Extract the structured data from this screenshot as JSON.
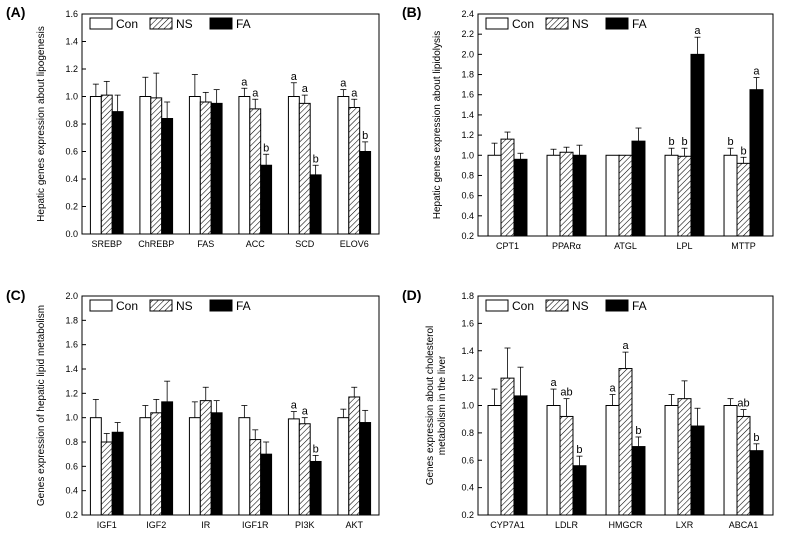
{
  "chart_data": [
    {
      "type": "bar",
      "panel_label": "(A)",
      "ylabel": "Hepatic genes expression about lipogenesis",
      "ylim": [
        0,
        1.6
      ],
      "yticks": [
        "0.0",
        "0.2",
        "0.4",
        "0.6",
        "0.8",
        "1.0",
        "1.2",
        "1.4",
        "1.6"
      ],
      "categories": [
        "SREBP",
        "ChREBP",
        "FAS",
        "ACC",
        "SCD",
        "ELOV6"
      ],
      "legend": [
        "Con",
        "NS",
        "FA"
      ],
      "series": [
        {
          "name": "Con",
          "values": [
            1.0,
            1.0,
            1.0,
            1.0,
            1.0,
            1.0
          ],
          "errors": [
            0.09,
            0.14,
            0.16,
            0.06,
            0.1,
            0.05
          ],
          "labels": [
            "",
            "",
            "",
            "a",
            "a",
            "a"
          ]
        },
        {
          "name": "NS",
          "values": [
            1.01,
            0.99,
            0.96,
            0.91,
            0.95,
            0.92
          ],
          "errors": [
            0.1,
            0.18,
            0.07,
            0.07,
            0.06,
            0.06
          ],
          "labels": [
            "",
            "",
            "",
            "a",
            "a",
            "a"
          ]
        },
        {
          "name": "FA",
          "values": [
            0.89,
            0.84,
            0.95,
            0.5,
            0.43,
            0.6
          ],
          "errors": [
            0.12,
            0.12,
            0.1,
            0.08,
            0.07,
            0.07
          ],
          "labels": [
            "",
            "",
            "",
            "b",
            "b",
            "b"
          ]
        }
      ]
    },
    {
      "type": "bar",
      "panel_label": "(B)",
      "ylabel": "Hepatic genes expression about lipidolysis",
      "ylim": [
        0.2,
        2.4
      ],
      "yticks": [
        "0.2",
        "0.4",
        "0.6",
        "0.8",
        "1.0",
        "1.2",
        "1.4",
        "1.6",
        "1.8",
        "2.0",
        "2.2",
        "2.4"
      ],
      "categories": [
        "CPT1",
        "PPARα",
        "ATGL",
        "LPL",
        "MTTP"
      ],
      "legend": [
        "Con",
        "NS",
        "FA"
      ],
      "series": [
        {
          "name": "Con",
          "values": [
            1.0,
            1.0,
            1.0,
            1.0,
            1.0
          ],
          "errors": [
            0.12,
            0.06,
            0.0,
            0.07,
            0.07
          ],
          "labels": [
            "",
            "",
            "",
            "b",
            "b"
          ]
        },
        {
          "name": "NS",
          "values": [
            1.16,
            1.03,
            1.0,
            0.99,
            0.92
          ],
          "errors": [
            0.07,
            0.05,
            0.0,
            0.08,
            0.06
          ],
          "labels": [
            "",
            "",
            "",
            "b",
            "b"
          ]
        },
        {
          "name": "FA",
          "values": [
            0.96,
            1.0,
            1.14,
            2.0,
            1.65
          ],
          "errors": [
            0.06,
            0.1,
            0.13,
            0.17,
            0.12
          ],
          "labels": [
            "",
            "",
            "",
            "a",
            "a"
          ]
        }
      ]
    },
    {
      "type": "bar",
      "panel_label": "(C)",
      "ylabel": "Genes expression of hepatic lipid metabolism",
      "ylim": [
        0.2,
        2.0
      ],
      "yticks": [
        "0.2",
        "0.4",
        "0.6",
        "0.8",
        "1.0",
        "1.2",
        "1.4",
        "1.6",
        "1.8",
        "2.0"
      ],
      "categories": [
        "IGF1",
        "IGF2",
        "IR",
        "IGF1R",
        "PI3K",
        "AKT"
      ],
      "legend": [
        "Con",
        "NS",
        "FA"
      ],
      "series": [
        {
          "name": "Con",
          "values": [
            1.0,
            1.0,
            1.0,
            1.0,
            0.99,
            1.0
          ],
          "errors": [
            0.15,
            0.1,
            0.13,
            0.1,
            0.06,
            0.07
          ],
          "labels": [
            "",
            "",
            "",
            "",
            "a",
            ""
          ]
        },
        {
          "name": "NS",
          "values": [
            0.8,
            1.04,
            1.14,
            0.82,
            0.95,
            1.17
          ],
          "errors": [
            0.07,
            0.11,
            0.11,
            0.08,
            0.05,
            0.08
          ],
          "labels": [
            "",
            "",
            "",
            "",
            "a",
            ""
          ]
        },
        {
          "name": "FA",
          "values": [
            0.88,
            1.13,
            1.04,
            0.7,
            0.64,
            0.96
          ],
          "errors": [
            0.08,
            0.17,
            0.1,
            0.1,
            0.05,
            0.1
          ],
          "labels": [
            "",
            "",
            "",
            "",
            "b",
            ""
          ]
        }
      ]
    },
    {
      "type": "bar",
      "panel_label": "(D)",
      "ylabel": "Genes expression about cholesterol metabolism in the liver",
      "ylabel_lines": [
        "Genes expression about cholesterol",
        "metabolism in the liver"
      ],
      "ylim": [
        0.2,
        1.8
      ],
      "yticks": [
        "0.2",
        "0.4",
        "0.6",
        "0.8",
        "1.0",
        "1.2",
        "1.4",
        "1.6",
        "1.8"
      ],
      "categories": [
        "CYP7A1",
        "LDLR",
        "HMGCR",
        "LXR",
        "ABCA1"
      ],
      "legend": [
        "Con",
        "NS",
        "FA"
      ],
      "series": [
        {
          "name": "Con",
          "values": [
            1.0,
            1.0,
            1.0,
            1.0,
            1.0
          ],
          "errors": [
            0.12,
            0.12,
            0.08,
            0.08,
            0.05
          ],
          "labels": [
            "",
            "a",
            "a",
            "",
            ""
          ]
        },
        {
          "name": "NS",
          "values": [
            1.2,
            0.92,
            1.27,
            1.05,
            0.92
          ],
          "errors": [
            0.22,
            0.13,
            0.12,
            0.13,
            0.05
          ],
          "labels": [
            "",
            "ab",
            "a",
            "",
            "ab"
          ]
        },
        {
          "name": "FA",
          "values": [
            1.07,
            0.56,
            0.7,
            0.85,
            0.67
          ],
          "errors": [
            0.21,
            0.07,
            0.07,
            0.13,
            0.05
          ],
          "labels": [
            "",
            "b",
            "b",
            "",
            "b"
          ]
        }
      ]
    }
  ]
}
